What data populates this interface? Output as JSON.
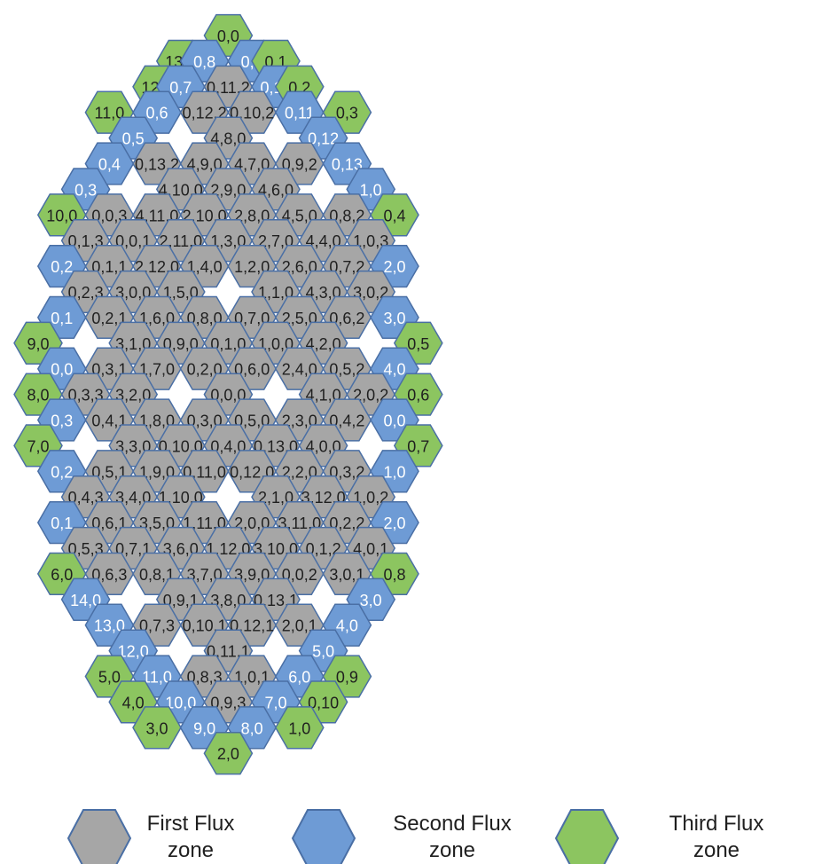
{
  "colors": {
    "first": "#a6a6a6",
    "second": "#6e9bd5",
    "third": "#8cc560",
    "stroke": "#4a6fa5",
    "text_dark": "#1f1f1f",
    "text_light": "#ffffff"
  },
  "legend": [
    {
      "zone": "first",
      "line1": "First Flux",
      "line2": "zone"
    },
    {
      "zone": "second",
      "line1": "Second Flux",
      "line2": "zone"
    },
    {
      "zone": "third",
      "line1": "Third Flux",
      "line2": "zone"
    }
  ],
  "rows": [
    [
      [
        8,
        "third",
        "0,0"
      ]
    ],
    [
      [
        6,
        "third",
        "13,0"
      ],
      [
        7,
        "second",
        "0,8"
      ],
      [
        9,
        "second",
        "0,9"
      ],
      [
        10,
        "third",
        "0,1"
      ]
    ],
    [
      [
        5,
        "third",
        "12,0"
      ],
      [
        6,
        "second",
        "0,7"
      ],
      [
        8,
        "first",
        "0,11,2"
      ],
      [
        10,
        "second",
        "0,10"
      ],
      [
        11,
        "third",
        "0,2"
      ]
    ],
    [
      [
        3,
        "third",
        "11,0"
      ],
      [
        5,
        "second",
        "0,6"
      ],
      [
        7,
        "first",
        "0,12,2"
      ],
      [
        9,
        "first",
        "0,10,2"
      ],
      [
        11,
        "second",
        "0,11"
      ],
      [
        13,
        "third",
        "0,3"
      ]
    ],
    [
      [
        4,
        "second",
        "0,5"
      ],
      [
        8,
        "first",
        "4,8,0"
      ],
      [
        12,
        "second",
        "0,12"
      ]
    ],
    [
      [
        3,
        "second",
        "0,4"
      ],
      [
        5,
        "first",
        "0,13,2"
      ],
      [
        7,
        "first",
        "4,9,0"
      ],
      [
        9,
        "first",
        "4,7,0"
      ],
      [
        11,
        "first",
        "0,9,2"
      ],
      [
        13,
        "second",
        "0,13"
      ]
    ],
    [
      [
        2,
        "second",
        "0,3"
      ],
      [
        6,
        "first",
        "4,10,0"
      ],
      [
        8,
        "first",
        "2,9,0"
      ],
      [
        10,
        "first",
        "4,6,0"
      ],
      [
        14,
        "second",
        "1,0"
      ]
    ],
    [
      [
        1,
        "third",
        "10,0"
      ],
      [
        3,
        "first",
        "0,0,3"
      ],
      [
        5,
        "first",
        "4,11,0"
      ],
      [
        7,
        "first",
        "2,10,0"
      ],
      [
        9,
        "first",
        "2,8,0"
      ],
      [
        11,
        "first",
        "4,5,0"
      ],
      [
        13,
        "first",
        "0,8,2"
      ],
      [
        15,
        "third",
        "0,4"
      ]
    ],
    [
      [
        2,
        "first",
        "0,1,3"
      ],
      [
        4,
        "first",
        "0,0,1"
      ],
      [
        6,
        "first",
        "2,11,0"
      ],
      [
        8,
        "first",
        "1,3,0"
      ],
      [
        10,
        "first",
        "2,7,0"
      ],
      [
        12,
        "first",
        "4,4,0"
      ],
      [
        14,
        "first",
        "1,0,3"
      ]
    ],
    [
      [
        1,
        "second",
        "0,2"
      ],
      [
        3,
        "first",
        "0,1,1"
      ],
      [
        5,
        "first",
        "2,12,0"
      ],
      [
        7,
        "first",
        "1,4,0"
      ],
      [
        9,
        "first",
        "1,2,0"
      ],
      [
        11,
        "first",
        "2,6,0"
      ],
      [
        13,
        "first",
        "0,7,2"
      ],
      [
        15,
        "second",
        "2,0"
      ]
    ],
    [
      [
        2,
        "first",
        "0,2,3"
      ],
      [
        4,
        "first",
        "3,0,0"
      ],
      [
        6,
        "first",
        "1,5,0"
      ],
      [
        10,
        "first",
        "1,1,0"
      ],
      [
        12,
        "first",
        "4,3,0"
      ],
      [
        14,
        "first",
        "3,0,2"
      ]
    ],
    [
      [
        1,
        "second",
        "0,1"
      ],
      [
        3,
        "first",
        "0,2,1"
      ],
      [
        5,
        "first",
        "1,6,0"
      ],
      [
        7,
        "first",
        "0,8,0"
      ],
      [
        9,
        "first",
        "0,7,0"
      ],
      [
        11,
        "first",
        "2,5,0"
      ],
      [
        13,
        "first",
        "0,6,2"
      ],
      [
        15,
        "second",
        "3,0"
      ]
    ],
    [
      [
        0,
        "third",
        "9,0"
      ],
      [
        4,
        "first",
        "3,1,0"
      ],
      [
        6,
        "first",
        "0,9,0"
      ],
      [
        8,
        "first",
        "0,1,0"
      ],
      [
        10,
        "first",
        "1,0,0"
      ],
      [
        12,
        "first",
        "4,2,0"
      ],
      [
        16,
        "third",
        "0,5"
      ]
    ],
    [
      [
        1,
        "second",
        "0,0"
      ],
      [
        3,
        "first",
        "0,3,1"
      ],
      [
        5,
        "first",
        "1,7,0"
      ],
      [
        7,
        "first",
        "0,2,0"
      ],
      [
        9,
        "first",
        "0,6,0"
      ],
      [
        11,
        "first",
        "2,4,0"
      ],
      [
        13,
        "first",
        "0,5,2"
      ],
      [
        15,
        "second",
        "4,0"
      ]
    ],
    [
      [
        0,
        "third",
        "8,0"
      ],
      [
        2,
        "first",
        "0,3,3"
      ],
      [
        4,
        "first",
        "3,2,0"
      ],
      [
        8,
        "first",
        "0,0,0"
      ],
      [
        12,
        "first",
        "4,1,0"
      ],
      [
        14,
        "first",
        "2,0,2"
      ],
      [
        16,
        "third",
        "0,6"
      ]
    ],
    [
      [
        1,
        "second",
        "0,3"
      ],
      [
        3,
        "first",
        "0,4,1"
      ],
      [
        5,
        "first",
        "1,8,0"
      ],
      [
        7,
        "first",
        "0,3,0"
      ],
      [
        9,
        "first",
        "0,5,0"
      ],
      [
        11,
        "first",
        "2,3,0"
      ],
      [
        13,
        "first",
        "0,4,2"
      ],
      [
        15,
        "second",
        "0,0"
      ]
    ],
    [
      [
        0,
        "third",
        "7,0"
      ],
      [
        4,
        "first",
        "3,3,0"
      ],
      [
        6,
        "first",
        "0,10,0"
      ],
      [
        8,
        "first",
        "0,4,0"
      ],
      [
        10,
        "first",
        "0,13,0"
      ],
      [
        12,
        "first",
        "4,0,0"
      ],
      [
        16,
        "third",
        "0,7"
      ]
    ],
    [
      [
        1,
        "second",
        "0,2"
      ],
      [
        3,
        "first",
        "0,5,1"
      ],
      [
        5,
        "first",
        "1,9,0"
      ],
      [
        7,
        "first",
        "0,11,0"
      ],
      [
        9,
        "first",
        "0,12,0"
      ],
      [
        11,
        "first",
        "2,2,0"
      ],
      [
        13,
        "first",
        "0,3,2"
      ],
      [
        15,
        "second",
        "1,0"
      ]
    ],
    [
      [
        2,
        "first",
        "0,4,3"
      ],
      [
        4,
        "first",
        "3,4,0"
      ],
      [
        6,
        "first",
        "1,10,0"
      ],
      [
        10,
        "first",
        "2,1,0"
      ],
      [
        12,
        "first",
        "3,12,0"
      ],
      [
        14,
        "first",
        "1,0,2"
      ]
    ],
    [
      [
        1,
        "second",
        "0,1"
      ],
      [
        3,
        "first",
        "0,6,1"
      ],
      [
        5,
        "first",
        "3,5,0"
      ],
      [
        7,
        "first",
        "1,11,0"
      ],
      [
        9,
        "first",
        "2,0,0"
      ],
      [
        11,
        "first",
        "3,11,0"
      ],
      [
        13,
        "first",
        "0,2,2"
      ],
      [
        15,
        "second",
        "2,0"
      ]
    ],
    [
      [
        2,
        "first",
        "0,5,3"
      ],
      [
        4,
        "first",
        "0,7,1"
      ],
      [
        6,
        "first",
        "3,6,0"
      ],
      [
        8,
        "first",
        "1,12,0"
      ],
      [
        10,
        "first",
        "3,10,0"
      ],
      [
        12,
        "first",
        "0,1,2"
      ],
      [
        14,
        "first",
        "4,0,1"
      ]
    ],
    [
      [
        1,
        "third",
        "6,0"
      ],
      [
        3,
        "first",
        "0,6,3"
      ],
      [
        5,
        "first",
        "0,8,1"
      ],
      [
        7,
        "first",
        "3,7,0"
      ],
      [
        9,
        "first",
        "3,9,0"
      ],
      [
        11,
        "first",
        "0,0,2"
      ],
      [
        13,
        "first",
        "3,0,1"
      ],
      [
        15,
        "third",
        "0,8"
      ]
    ],
    [
      [
        2,
        "second",
        "14,0"
      ],
      [
        6,
        "first",
        "0,9,1"
      ],
      [
        8,
        "first",
        "3,8,0"
      ],
      [
        10,
        "first",
        "0,13,1"
      ],
      [
        14,
        "second",
        "3,0"
      ]
    ],
    [
      [
        3,
        "second",
        "13,0"
      ],
      [
        5,
        "first",
        "0,7,3"
      ],
      [
        7,
        "first",
        "0,10,1"
      ],
      [
        9,
        "first",
        "0,12,1"
      ],
      [
        11,
        "first",
        "2,0,1"
      ],
      [
        13,
        "second",
        "4,0"
      ]
    ],
    [
      [
        4,
        "second",
        "12,0"
      ],
      [
        8,
        "first",
        "0,11,1"
      ],
      [
        12,
        "second",
        "5,0"
      ]
    ],
    [
      [
        3,
        "third",
        "5,0"
      ],
      [
        5,
        "second",
        "11,0"
      ],
      [
        7,
        "first",
        "0,8,3"
      ],
      [
        9,
        "first",
        "1,0,1"
      ],
      [
        11,
        "second",
        "6,0"
      ],
      [
        13,
        "third",
        "0,9"
      ]
    ],
    [
      [
        4,
        "third",
        "4,0"
      ],
      [
        6,
        "second",
        "10,0"
      ],
      [
        8,
        "first",
        "0,9,3"
      ],
      [
        10,
        "second",
        "7,0"
      ],
      [
        12,
        "third",
        "0,10"
      ]
    ],
    [
      [
        5,
        "third",
        "3,0"
      ],
      [
        7,
        "second",
        "9,0"
      ],
      [
        9,
        "second",
        "8,0"
      ],
      [
        11,
        "third",
        "1,0"
      ]
    ],
    [
      [
        8,
        "third",
        "2,0"
      ]
    ]
  ]
}
